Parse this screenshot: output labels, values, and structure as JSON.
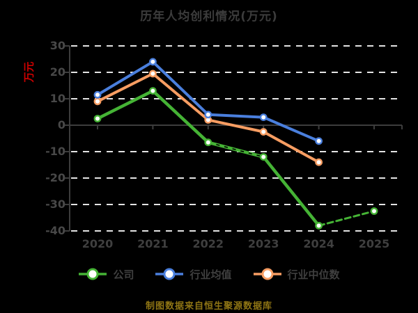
{
  "title": "历年人均创利情况(万元)",
  "caption": "制图数据来自恒生聚源数据库",
  "colors": {
    "background": "#000000",
    "title_text": "#3c3c3c",
    "tick_text": "#464646",
    "ylabel_text": "#cc0000",
    "caption_text": "#8f7514",
    "gridline": "#e4e4e4",
    "axis": "#3d3d3d",
    "company": "#45b335",
    "industry_avg": "#4a7fdd",
    "industry_median": "#f79d62"
  },
  "chart_data": {
    "type": "line",
    "title": "历年人均创利情况(万元)",
    "ylabel": "万元",
    "xlabel": "",
    "x": [
      2020,
      2021,
      2022,
      2023,
      2024,
      2025
    ],
    "series": [
      {
        "name": "公司",
        "color": "#45b335",
        "values": [
          2.5,
          13,
          -6.5,
          -12,
          -38,
          -32.5
        ],
        "last_segment_dashed": true
      },
      {
        "name": "行业均值",
        "color": "#4a7fdd",
        "values": [
          11.5,
          24,
          4,
          3,
          -6,
          null
        ]
      },
      {
        "name": "行业中位数",
        "color": "#f79d62",
        "values": [
          9,
          19.5,
          2,
          -2.5,
          -14,
          null
        ]
      }
    ],
    "ylim": [
      -40,
      30
    ],
    "yticks": [
      30,
      20,
      10,
      0,
      -10,
      -20,
      -30,
      -40
    ],
    "grid": true,
    "grid_style": "dashed",
    "legend_position": "bottom",
    "marker": "circle-white-fill"
  },
  "legend": {
    "items": [
      {
        "label": "公司"
      },
      {
        "label": "行业均值"
      },
      {
        "label": "行业中位数"
      }
    ]
  }
}
